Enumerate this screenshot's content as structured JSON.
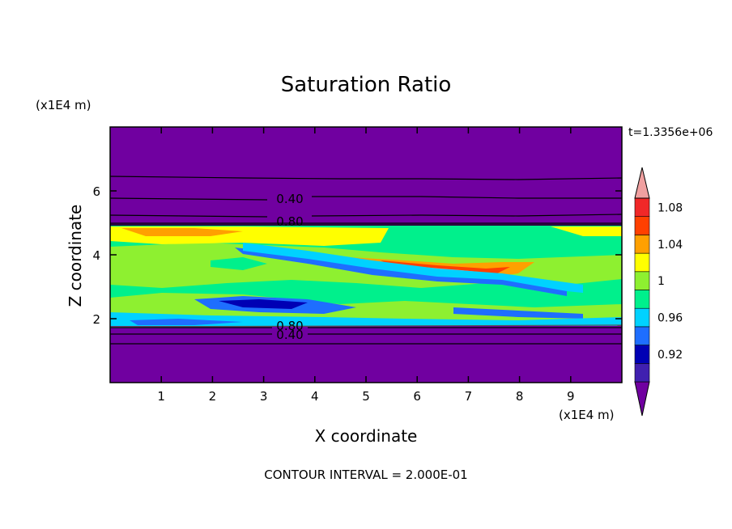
{
  "chart_data": {
    "type": "heatmap",
    "title": "Saturation Ratio",
    "xlabel": "X coordinate",
    "ylabel": "Z coordinate",
    "x_unit": "(x1E4 m)",
    "y_unit": "(x1E4 m)",
    "time_label": "t=1.3356e+06",
    "footer": "CONTOUR INTERVAL = 2.000E-01",
    "xlim": [
      0,
      10
    ],
    "ylim": [
      0,
      8
    ],
    "x_ticks": [
      "1",
      "2",
      "3",
      "4",
      "5",
      "6",
      "7",
      "8",
      "9"
    ],
    "y_ticks": [
      "2",
      "4",
      "6"
    ],
    "colorbar": {
      "labels": [
        "0.92",
        "0.96",
        "1",
        "1.04",
        "1.08"
      ],
      "levels": [
        0.9,
        0.92,
        0.94,
        0.96,
        0.98,
        1.0,
        1.02,
        1.04,
        1.06,
        1.08,
        1.1
      ],
      "colors": [
        "#7000a0",
        "#4020b0",
        "#0000b4",
        "#1e6eff",
        "#00d2ff",
        "#00f08c",
        "#8ef030",
        "#ffff00",
        "#ffa000",
        "#ff4000",
        "#f02828",
        "#f0a0a0"
      ]
    },
    "contour_labels": [
      {
        "text": "0.40",
        "x": 3.6,
        "z": 5.7
      },
      {
        "text": "0.80",
        "x": 3.6,
        "z": 5.0
      },
      {
        "text": "0.80",
        "x": 3.6,
        "z": 1.85
      },
      {
        "text": "0.40",
        "x": 3.6,
        "z": 1.5
      }
    ],
    "regions": [
      {
        "level": "0.90",
        "x": [
          0,
          10
        ],
        "z": [
          0,
          1.8
        ]
      },
      {
        "level": "0.90",
        "x": [
          0,
          10
        ],
        "z": [
          4.95,
          8
        ]
      },
      {
        "level": "1.00",
        "x": [
          0,
          10
        ],
        "z": [
          1.8,
          4.95
        ],
        "note": "mixed 0.92–1.10 band"
      }
    ]
  }
}
